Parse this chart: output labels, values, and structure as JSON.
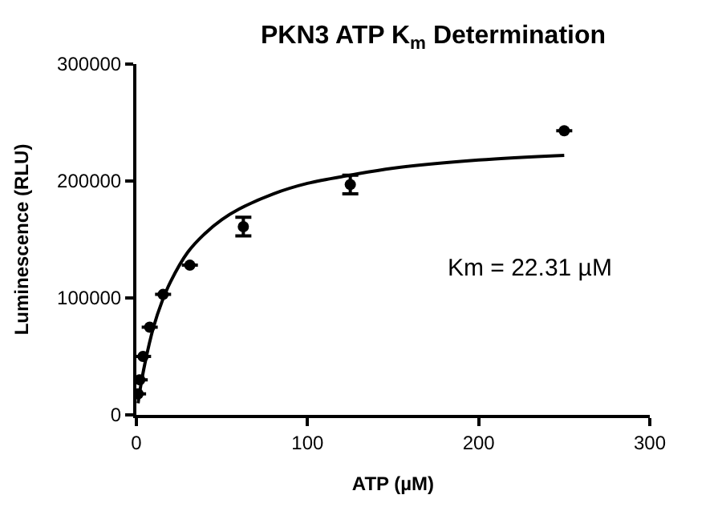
{
  "chart_data": {
    "type": "scatter",
    "title": "PKN3 ATP K$_{m}$ Determination",
    "xlabel": "ATP (µM)",
    "ylabel": "Luminescence (RLU)",
    "annotations": [
      "Km = 22.31 µM"
    ],
    "xlim": [
      0,
      300
    ],
    "xticks": [
      0,
      100,
      200,
      300
    ],
    "ylim": [
      0,
      300000
    ],
    "yticks": [
      0,
      100000,
      200000,
      300000
    ],
    "legend": false,
    "series": [
      {
        "color": "#000000",
        "marker": "circle",
        "x": [
          0.98,
          1.95,
          3.9,
          7.8,
          15.6,
          31.25,
          62.5,
          125,
          250
        ],
        "values": [
          18000,
          30000,
          50000,
          75000,
          103000,
          128000,
          161000,
          197000,
          243000
        ],
        "errors": [
          null,
          null,
          null,
          null,
          null,
          null,
          8000,
          8000,
          null
        ]
      },
      {
        "type": "line",
        "color": "#000000",
        "line_style": "solid",
        "x": [
          1,
          2,
          5,
          10,
          15,
          20,
          30,
          40,
          50,
          60,
          80,
          100,
          125,
          150,
          200,
          250
        ],
        "values": [
          10000,
          20000,
          44000,
          75000,
          97000,
          114000,
          139000,
          155000,
          167000,
          176000,
          189000,
          198000,
          205000,
          211000,
          218000,
          222000
        ]
      }
    ]
  }
}
